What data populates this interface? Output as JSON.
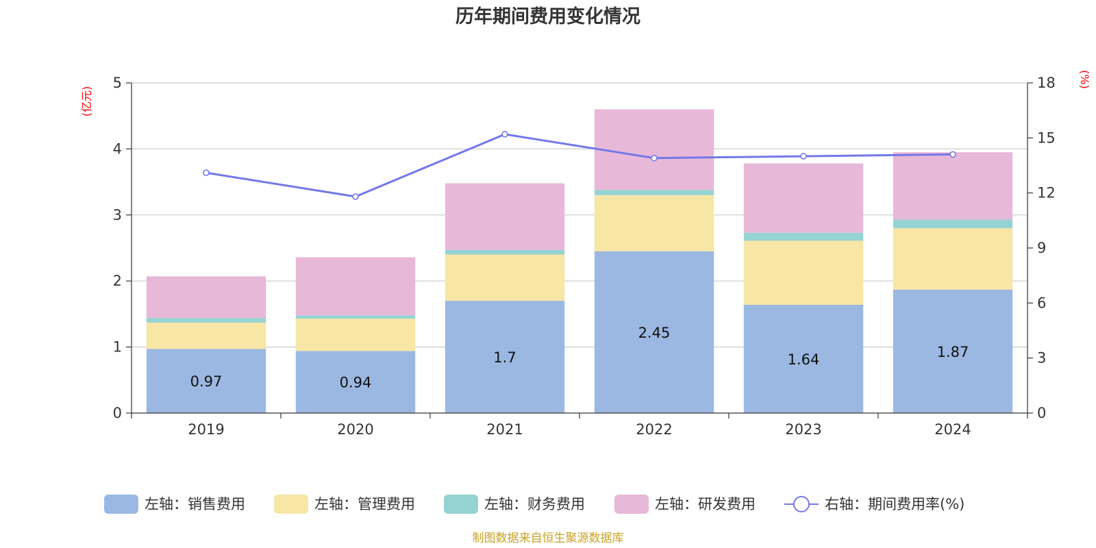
{
  "chart_data": {
    "type": "bar",
    "stacked": true,
    "title": "历年期间费用变化情况",
    "left_axis_unit": "(亿元)",
    "right_axis_unit": "(%)",
    "categories": [
      "2019",
      "2020",
      "2021",
      "2022",
      "2023",
      "2024"
    ],
    "left_ylim": [
      0,
      5
    ],
    "left_ticks": [
      "0",
      "1",
      "2",
      "3",
      "4",
      "5"
    ],
    "right_ylim": [
      0,
      18
    ],
    "right_ticks": [
      "0",
      "3",
      "6",
      "9",
      "12",
      "15",
      "18"
    ],
    "series": [
      {
        "name": "左轴：销售费用",
        "axis": "left",
        "kind": "bar",
        "color": "#9bb8e2",
        "values": [
          0.97,
          0.94,
          1.7,
          2.45,
          1.64,
          1.87
        ],
        "labels": [
          "0.97",
          "0.94",
          "1.7",
          "2.45",
          "1.64",
          "1.87"
        ]
      },
      {
        "name": "左轴：管理费用",
        "axis": "left",
        "kind": "bar",
        "color": "#f7e6a6",
        "values": [
          0.4,
          0.49,
          0.7,
          0.85,
          0.97,
          0.93
        ]
      },
      {
        "name": "左轴：财务费用",
        "axis": "left",
        "kind": "bar",
        "color": "#95d3d3",
        "values": [
          0.07,
          0.05,
          0.07,
          0.08,
          0.12,
          0.13
        ]
      },
      {
        "name": "左轴：研发费用",
        "axis": "left",
        "kind": "bar",
        "color": "#e8b8d8",
        "values": [
          0.63,
          0.88,
          1.01,
          1.22,
          1.05,
          1.02
        ]
      },
      {
        "name": "右轴：期间费用率(%)",
        "axis": "right",
        "kind": "line",
        "color": "#7378e8",
        "values": [
          13.1,
          11.8,
          15.2,
          13.9,
          14.0,
          14.1
        ]
      }
    ],
    "source": "制图数据来自恒生聚源数据库"
  }
}
